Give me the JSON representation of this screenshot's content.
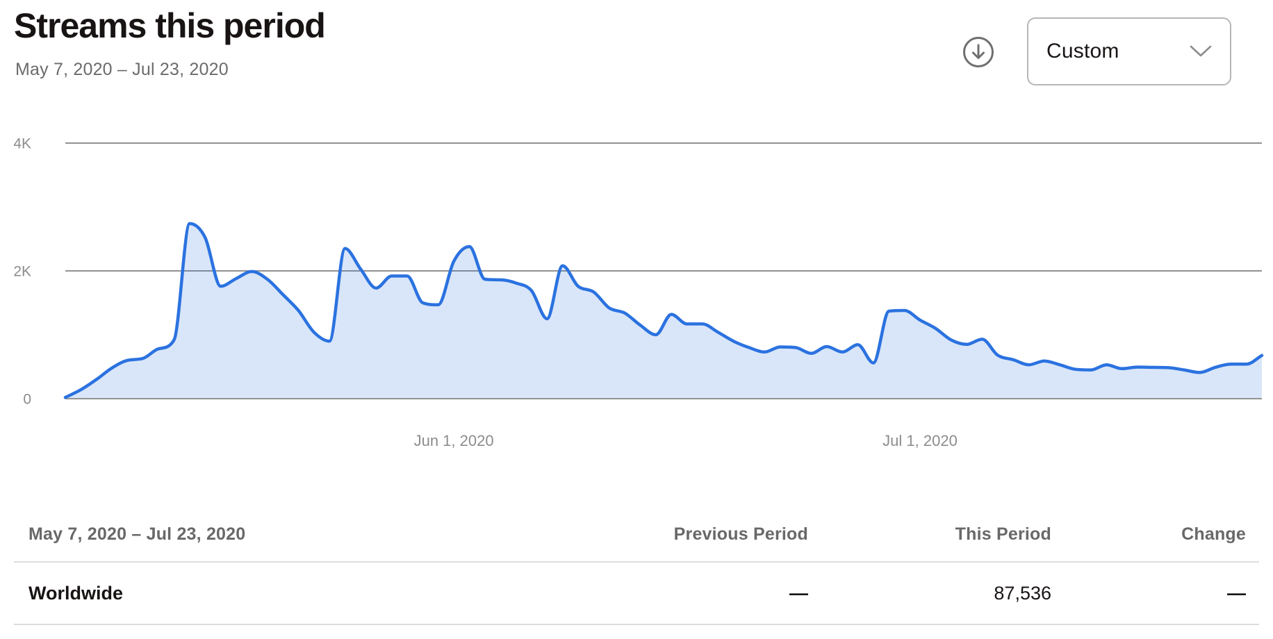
{
  "header": {
    "title": "Streams this period",
    "date_range": "May 7, 2020 – Jul 23, 2020",
    "period_selector": {
      "value": "Custom"
    }
  },
  "chart_data": {
    "type": "area",
    "title": "Streams this period",
    "x_start": "May 7, 2020",
    "x_end": "Jul 23, 2020",
    "x_interval": "daily",
    "values": [
      20,
      140,
      300,
      480,
      600,
      630,
      780,
      920,
      2740,
      2520,
      1760,
      1880,
      1990,
      1870,
      1630,
      1380,
      1040,
      900,
      2350,
      2030,
      1730,
      1920,
      1920,
      1500,
      1470,
      2150,
      2380,
      1870,
      1860,
      1810,
      1690,
      1250,
      2080,
      1760,
      1670,
      1420,
      1340,
      1150,
      1000,
      1320,
      1170,
      1170,
      1040,
      900,
      800,
      730,
      810,
      800,
      710,
      815,
      730,
      845,
      560,
      1370,
      1380,
      1230,
      1100,
      920,
      850,
      930,
      680,
      610,
      530,
      590,
      530,
      460,
      450,
      530,
      470,
      495,
      490,
      485,
      450,
      410,
      490,
      540,
      540,
      676
    ],
    "total": 87536,
    "ylim": [
      0,
      4400
    ],
    "y_ticks": [
      {
        "label": "0",
        "value": 0
      },
      {
        "label": "2K",
        "value": 2000
      },
      {
        "label": "4K",
        "value": 4000
      }
    ],
    "x_ticks": [
      {
        "label": "Jun 1, 2020",
        "index": 25
      },
      {
        "label": "Jul 1, 2020",
        "index": 55
      }
    ],
    "grid": "horizontal",
    "legend": "none",
    "colors": {
      "line": "#2b72e0",
      "fill": "rgba(43,114,224,0.18)",
      "grid": "#919191",
      "axis_text": "#8c8c8c"
    }
  },
  "table": {
    "columns": [
      "May 7, 2020 – Jul 23, 2020",
      "Previous Period",
      "This Period",
      "Change"
    ],
    "rows": [
      {
        "label": "Worldwide",
        "previous_period": "—",
        "this_period": "87,536",
        "change": "—"
      }
    ]
  }
}
